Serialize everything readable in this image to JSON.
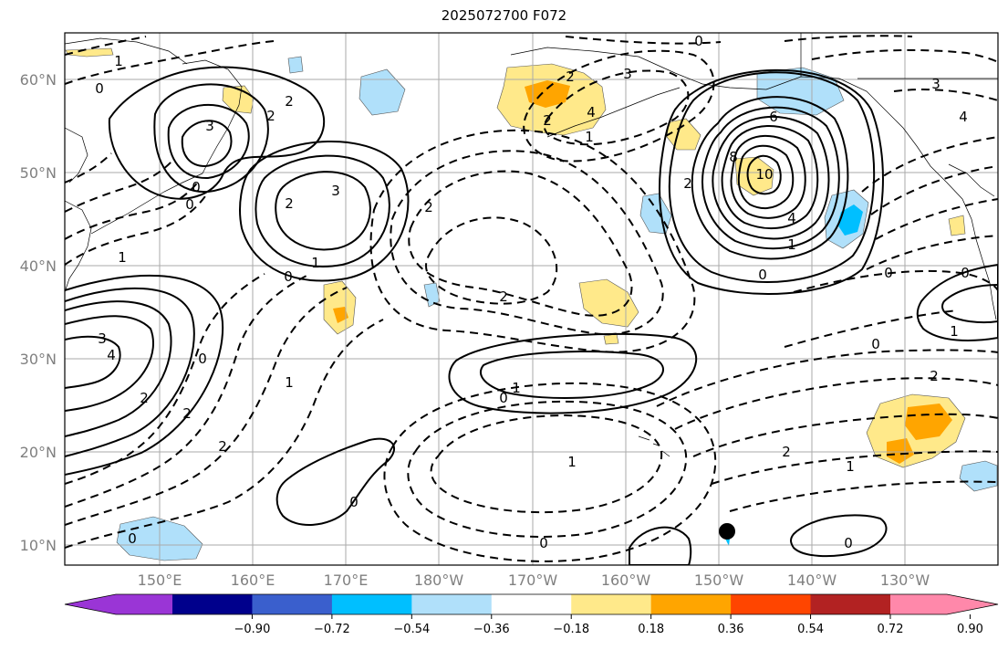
{
  "title": "2025072700 F072",
  "lat_ticks": [
    "60°N",
    "50°N",
    "40°N",
    "30°N",
    "20°N",
    "10°N"
  ],
  "lon_ticks": [
    "150°E",
    "160°E",
    "170°E",
    "180°W",
    "170°W",
    "160°W",
    "150°W",
    "140°W",
    "130°W"
  ],
  "colorbar": {
    "colors": [
      "#9a35d6",
      "#00008c",
      "#3a5fcd",
      "#00bfff",
      "#b0e0fa",
      "#ffffff",
      "#ffe98a",
      "#ffa500",
      "#ff4500",
      "#b22222",
      "#ff88aa"
    ],
    "labels": [
      "−0.90",
      "−0.72",
      "−0.54",
      "−0.36",
      "−0.18",
      "0.18",
      "0.36",
      "0.54",
      "0.72",
      "0.90"
    ]
  },
  "contour_labels": [
    {
      "text": "0"
    },
    {
      "text": "1"
    },
    {
      "text": "2"
    },
    {
      "text": "2"
    },
    {
      "text": "3"
    },
    {
      "text": "0"
    },
    {
      "text": "0"
    },
    {
      "text": "1"
    },
    {
      "text": "3"
    },
    {
      "text": "2"
    },
    {
      "text": "1"
    },
    {
      "text": "0"
    },
    {
      "text": "3"
    },
    {
      "text": "4"
    },
    {
      "text": "0"
    },
    {
      "text": "2"
    },
    {
      "text": "1"
    },
    {
      "text": "2"
    },
    {
      "text": "2"
    },
    {
      "text": "0"
    },
    {
      "text": "0"
    },
    {
      "text": "2"
    },
    {
      "text": "1"
    },
    {
      "text": "0"
    },
    {
      "text": "1"
    },
    {
      "text": "0"
    },
    {
      "text": "2"
    },
    {
      "text": "1"
    },
    {
      "text": "0"
    },
    {
      "text": "3"
    },
    {
      "text": "4"
    },
    {
      "text": "2"
    },
    {
      "text": "2"
    },
    {
      "text": "6"
    },
    {
      "text": "8"
    },
    {
      "text": "10"
    },
    {
      "text": "4"
    },
    {
      "text": "2"
    },
    {
      "text": "1"
    },
    {
      "text": "0"
    },
    {
      "text": "3"
    },
    {
      "text": "4"
    },
    {
      "text": "0"
    },
    {
      "text": "0"
    },
    {
      "text": "1"
    },
    {
      "text": "0"
    },
    {
      "text": "2"
    },
    {
      "text": "2"
    },
    {
      "text": "1"
    },
    {
      "text": "0"
    }
  ]
}
